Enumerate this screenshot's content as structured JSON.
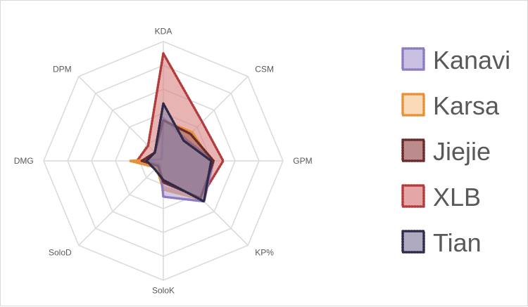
{
  "chart_data": {
    "type": "radar",
    "title": "",
    "axes": [
      "KDA",
      "CSM",
      "GPM",
      "KP%",
      "SoloK",
      "SoloD",
      "DMG",
      "DPM"
    ],
    "rmax": 5,
    "grid_levels": [
      1,
      2,
      3,
      4,
      5
    ],
    "grid": true,
    "legend_position": "right",
    "series": [
      {
        "name": "Kanavi",
        "color": "#b4a7d6",
        "stroke": "#8e7cc3",
        "values": [
          1.8,
          1.3,
          2.1,
          2.4,
          1.5,
          0.2,
          0.9,
          0.1
        ]
      },
      {
        "name": "Karsa",
        "color": "#f9cb9c",
        "stroke": "#e69138",
        "values": [
          1.7,
          1.7,
          2.0,
          2.3,
          1.2,
          0.4,
          1.4,
          0.1
        ]
      },
      {
        "name": "Jiejie",
        "color": "#a05a5a",
        "stroke": "#6b2a2a",
        "values": [
          1.7,
          1.6,
          2.1,
          2.2,
          0.9,
          0.3,
          0.9,
          0.5
        ]
      },
      {
        "name": "XLB",
        "color": "#d98080",
        "stroke": "#b23c3c",
        "values": [
          4.5,
          2.3,
          2.5,
          2.2,
          1.1,
          0.3,
          1.1,
          0.9
        ]
      },
      {
        "name": "Tian",
        "color": "#8e86a6",
        "stroke": "#2f2a4a",
        "values": [
          2.4,
          1.2,
          2.0,
          2.4,
          0.8,
          0.5,
          0.7,
          0.5
        ]
      }
    ]
  }
}
